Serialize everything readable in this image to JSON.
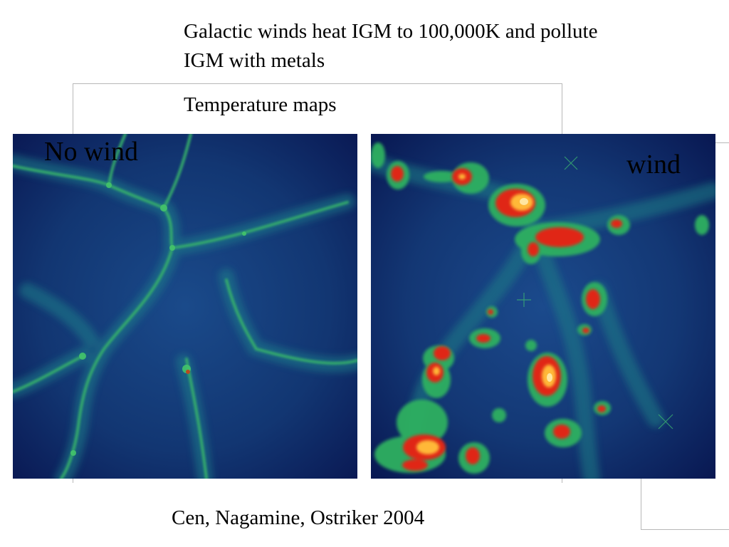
{
  "slide": {
    "title": "Galactic winds heat IGM to 100,000K and pollute IGM with metals",
    "subtitle": "Temperature maps",
    "citation": "Cen, Nagamine, Ostriker 2004"
  },
  "panels": {
    "left": {
      "label": "No wind",
      "background": "#0b1d5c",
      "filament_color": "#32b464"
    },
    "right": {
      "label": "wind",
      "background": "#0a1a58",
      "filament_color": "#2fb060",
      "hot_color": "#e02818",
      "core_color": "#ffc040"
    }
  }
}
